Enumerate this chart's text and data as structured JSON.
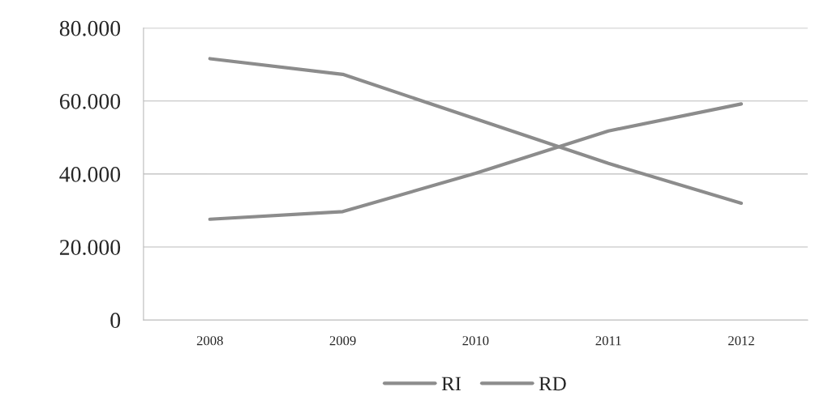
{
  "chart_data": {
    "type": "line",
    "categories": [
      "2008",
      "2009",
      "2010",
      "2011",
      "2012"
    ],
    "series": [
      {
        "name": "RI",
        "color": "#8c8c8c",
        "values": [
          27600,
          29700,
          40200,
          51800,
          59200
        ]
      },
      {
        "name": "RD",
        "color": "#8c8c8c",
        "values": [
          71600,
          67300,
          55100,
          42900,
          32000
        ]
      }
    ],
    "ylim": [
      0,
      80000
    ],
    "yticks": [
      0,
      {
        "value": 20000,
        "label": "20.000"
      },
      {
        "value": 40000,
        "label": "40.000"
      },
      {
        "value": 60000,
        "label": "60.000"
      },
      {
        "value": 80000,
        "label": "80.000"
      }
    ],
    "grid": "y",
    "legend": "bottom",
    "marker": "none",
    "line_style": "solid"
  }
}
